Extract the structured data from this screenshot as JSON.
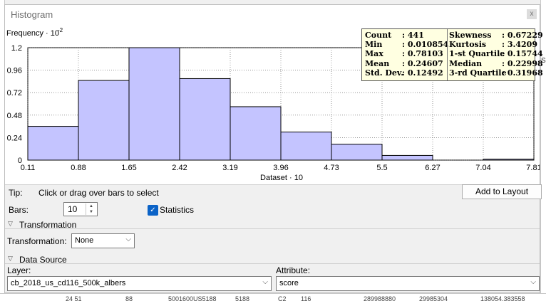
{
  "window": {
    "title": "Histogram",
    "close_label": "x"
  },
  "chart_data": {
    "type": "bar",
    "ylabel": "Frequency · 10",
    "ylabel_exponent": "-2",
    "xlabel": "Dataset · 10",
    "y_ticks": [
      "1.2",
      "0.96",
      "0.72",
      "0.48",
      "0.24",
      "0"
    ],
    "x_ticks": [
      "0.11",
      "0.88",
      "1.65",
      "2.42",
      "3.19",
      "3.96",
      "4.73",
      "5.5",
      "6.27",
      "7.04",
      "7.81"
    ],
    "xlim": [
      0.11,
      7.81
    ],
    "ylim": [
      0,
      1.2
    ],
    "bins": [
      {
        "start": 0.11,
        "end": 0.88,
        "value": 0.36
      },
      {
        "start": 0.88,
        "end": 1.65,
        "value": 0.85
      },
      {
        "start": 1.65,
        "end": 2.42,
        "value": 1.2
      },
      {
        "start": 2.42,
        "end": 3.19,
        "value": 0.87
      },
      {
        "start": 3.19,
        "end": 3.96,
        "value": 0.57
      },
      {
        "start": 3.96,
        "end": 4.73,
        "value": 0.3
      },
      {
        "start": 4.73,
        "end": 5.5,
        "value": 0.17
      },
      {
        "start": 5.5,
        "end": 6.27,
        "value": 0.05
      },
      {
        "start": 6.27,
        "end": 7.04,
        "value": 0
      },
      {
        "start": 7.04,
        "end": 7.81,
        "value": 0.01
      }
    ],
    "bar_color": "#c4c4ff",
    "grid": true
  },
  "stats": {
    "left": [
      {
        "key": "Count",
        "value": ": 441"
      },
      {
        "key": "Min",
        "value": ": 0.010854"
      },
      {
        "key": "Max",
        "value": ": 0.78103"
      },
      {
        "key": "Mean",
        "value": ": 0.24607"
      },
      {
        "key": "Std. Dev.",
        "value": ": 0.12492"
      }
    ],
    "right": [
      {
        "key": "Skewness",
        "value": ": 0.67229"
      },
      {
        "key": "Kurtosis",
        "value": ": 3.4209"
      },
      {
        "key": "1-st Quartile",
        "value": ": 0.15744"
      },
      {
        "key": "Median",
        "value": ": 0.22998"
      },
      {
        "key": "3-rd Quartile",
        "value": ": 0.31968"
      }
    ]
  },
  "controls": {
    "tip_label": "Tip:",
    "tip_text": "Click or drag over bars to select",
    "add_to_layout": "Add to Layout",
    "bars_label": "Bars:",
    "bars_value": "10",
    "statistics_label": "Statistics",
    "statistics_checked": true
  },
  "transformation": {
    "section_title": "Transformation",
    "label": "Transformation:",
    "value": "None"
  },
  "data_source": {
    "section_title": "Data Source",
    "layer_label": "Layer:",
    "layer_value": "cb_2018_us_cd116_500k_albers",
    "attribute_label": "Attribute:",
    "attribute_value": "score"
  },
  "background": {
    "right_fragments": [
      "Sl"
    ],
    "bottom_fragments": [
      "24 51",
      "88",
      "5001600US5188",
      "5188",
      "C2",
      "116",
      "289988880",
      "29985304",
      "138054.383558"
    ]
  }
}
